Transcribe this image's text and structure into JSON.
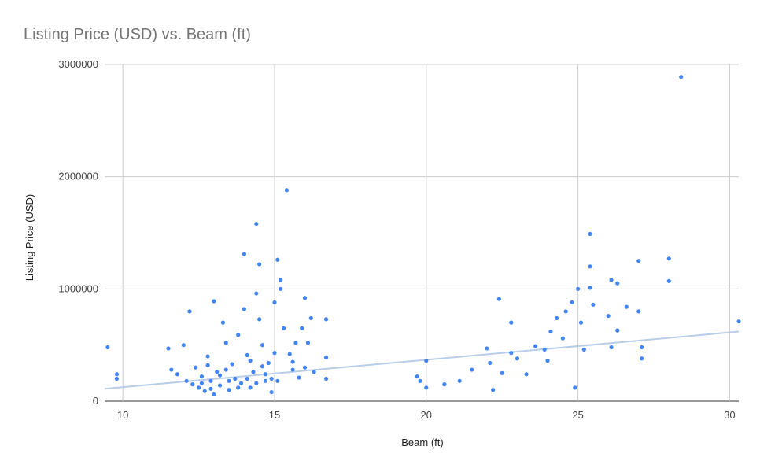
{
  "chart_data": {
    "type": "scatter",
    "title": "Listing Price (USD) vs. Beam (ft)",
    "xlabel": "Beam (ft)",
    "ylabel": "Listing Price (USD)",
    "xlim": [
      9.4,
      30.3
    ],
    "ylim": [
      0,
      3000000
    ],
    "x_ticks": [
      "10",
      "15",
      "20",
      "25",
      "30"
    ],
    "x_tick_values": [
      10,
      15,
      20,
      25,
      30
    ],
    "y_ticks": [
      "0",
      "1000000",
      "2000000",
      "3000000"
    ],
    "y_tick_values": [
      0,
      1000000,
      2000000,
      3000000
    ],
    "grid": true,
    "point_color": "#4285f4",
    "trendline_color": "#b8cde8",
    "trendline": {
      "x": [
        9.4,
        30.3
      ],
      "y": [
        110000,
        620000
      ]
    },
    "points": [
      [
        9.5,
        480000
      ],
      [
        9.8,
        240000
      ],
      [
        9.8,
        200000
      ],
      [
        11.5,
        470000
      ],
      [
        11.6,
        280000
      ],
      [
        11.8,
        240000
      ],
      [
        12.0,
        500000
      ],
      [
        12.2,
        800000
      ],
      [
        12.1,
        180000
      ],
      [
        12.3,
        150000
      ],
      [
        12.4,
        300000
      ],
      [
        12.5,
        120000
      ],
      [
        12.6,
        220000
      ],
      [
        12.7,
        90000
      ],
      [
        12.8,
        400000
      ],
      [
        12.9,
        180000
      ],
      [
        13.0,
        890000
      ],
      [
        13.0,
        60000
      ],
      [
        13.1,
        260000
      ],
      [
        13.2,
        140000
      ],
      [
        13.3,
        700000
      ],
      [
        13.4,
        520000
      ],
      [
        13.5,
        100000
      ],
      [
        13.6,
        330000
      ],
      [
        13.7,
        200000
      ],
      [
        13.8,
        590000
      ],
      [
        13.9,
        160000
      ],
      [
        14.0,
        1310000
      ],
      [
        14.0,
        820000
      ],
      [
        14.1,
        410000
      ],
      [
        14.2,
        120000
      ],
      [
        14.3,
        260000
      ],
      [
        14.4,
        1580000
      ],
      [
        14.4,
        960000
      ],
      [
        14.5,
        1220000
      ],
      [
        14.5,
        730000
      ],
      [
        14.6,
        500000
      ],
      [
        14.7,
        180000
      ],
      [
        14.8,
        340000
      ],
      [
        14.9,
        80000
      ],
      [
        15.0,
        880000
      ],
      [
        15.0,
        430000
      ],
      [
        15.1,
        1260000
      ],
      [
        15.2,
        1080000
      ],
      [
        15.2,
        1000000
      ],
      [
        15.3,
        650000
      ],
      [
        15.4,
        1880000
      ],
      [
        15.5,
        420000
      ],
      [
        15.6,
        280000
      ],
      [
        15.7,
        520000
      ],
      [
        15.8,
        210000
      ],
      [
        15.9,
        650000
      ],
      [
        16.0,
        920000
      ],
      [
        16.0,
        300000
      ],
      [
        16.1,
        520000
      ],
      [
        16.2,
        740000
      ],
      [
        16.3,
        260000
      ],
      [
        16.7,
        730000
      ],
      [
        16.7,
        390000
      ],
      [
        16.7,
        200000
      ],
      [
        12.6,
        160000
      ],
      [
        12.9,
        110000
      ],
      [
        13.2,
        230000
      ],
      [
        13.5,
        180000
      ],
      [
        13.8,
        120000
      ],
      [
        14.1,
        200000
      ],
      [
        14.4,
        160000
      ],
      [
        14.7,
        240000
      ],
      [
        14.9,
        200000
      ],
      [
        15.1,
        180000
      ],
      [
        12.8,
        320000
      ],
      [
        13.4,
        280000
      ],
      [
        14.2,
        360000
      ],
      [
        14.6,
        310000
      ],
      [
        15.6,
        350000
      ],
      [
        19.7,
        220000
      ],
      [
        19.8,
        180000
      ],
      [
        20.0,
        360000
      ],
      [
        20.0,
        120000
      ],
      [
        20.6,
        150000
      ],
      [
        21.1,
        180000
      ],
      [
        21.5,
        280000
      ],
      [
        22.0,
        470000
      ],
      [
        22.1,
        340000
      ],
      [
        22.2,
        100000
      ],
      [
        22.4,
        910000
      ],
      [
        22.5,
        250000
      ],
      [
        22.8,
        700000
      ],
      [
        22.8,
        430000
      ],
      [
        23.0,
        380000
      ],
      [
        23.3,
        240000
      ],
      [
        23.6,
        490000
      ],
      [
        23.9,
        460000
      ],
      [
        24.0,
        360000
      ],
      [
        24.1,
        620000
      ],
      [
        24.3,
        740000
      ],
      [
        24.5,
        560000
      ],
      [
        24.6,
        800000
      ],
      [
        24.8,
        880000
      ],
      [
        24.9,
        120000
      ],
      [
        25.0,
        1000000
      ],
      [
        25.1,
        700000
      ],
      [
        25.2,
        460000
      ],
      [
        25.4,
        1490000
      ],
      [
        25.4,
        1200000
      ],
      [
        25.4,
        1010000
      ],
      [
        25.5,
        860000
      ],
      [
        26.0,
        760000
      ],
      [
        26.1,
        1080000
      ],
      [
        26.1,
        480000
      ],
      [
        26.3,
        1050000
      ],
      [
        26.3,
        630000
      ],
      [
        26.6,
        840000
      ],
      [
        27.0,
        1250000
      ],
      [
        27.0,
        800000
      ],
      [
        27.1,
        480000
      ],
      [
        27.1,
        380000
      ],
      [
        28.0,
        1270000
      ],
      [
        28.0,
        1070000
      ],
      [
        28.4,
        2890000
      ],
      [
        30.3,
        710000
      ]
    ]
  }
}
